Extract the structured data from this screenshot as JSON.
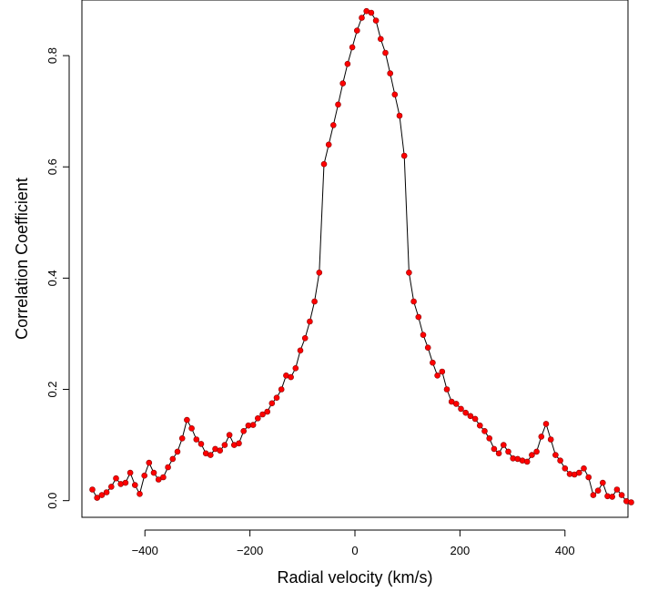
{
  "chart_data": {
    "type": "scatter",
    "title": "",
    "xlabel": "Radial velocity (km/s)",
    "ylabel": "Correlation Coefficient",
    "xlim": [
      -520,
      520
    ],
    "ylim": [
      -0.03,
      0.9
    ],
    "xticks": [
      -400,
      -200,
      0,
      200,
      400
    ],
    "yticks": [
      0.0,
      0.2,
      0.4,
      0.6,
      0.8
    ],
    "xtick_labels": [
      "−400",
      "−200",
      "0",
      "200",
      "400"
    ],
    "ytick_labels": [
      "0.0",
      "0.2",
      "0.4",
      "0.6",
      "0.8"
    ],
    "grid": false,
    "line_color": "#000000",
    "point_color": "#ff0000",
    "series": [
      {
        "points": [
          [
            -500,
            0.02
          ],
          [
            -491,
            0.005
          ],
          [
            -482,
            0.01
          ],
          [
            -473,
            0.015
          ],
          [
            -464,
            0.025
          ],
          [
            -455,
            0.04
          ],
          [
            -446,
            0.03
          ],
          [
            -437,
            0.032
          ],
          [
            -428,
            0.05
          ],
          [
            -419,
            0.028
          ],
          [
            -410,
            0.012
          ],
          [
            -401,
            0.045
          ],
          [
            -392,
            0.068
          ],
          [
            -383,
            0.05
          ],
          [
            -374,
            0.038
          ],
          [
            -365,
            0.042
          ],
          [
            -356,
            0.06
          ],
          [
            -347,
            0.075
          ],
          [
            -338,
            0.088
          ],
          [
            -329,
            0.112
          ],
          [
            -320,
            0.145
          ],
          [
            -311,
            0.13
          ],
          [
            -302,
            0.11
          ],
          [
            -293,
            0.102
          ],
          [
            -284,
            0.085
          ],
          [
            -275,
            0.082
          ],
          [
            -266,
            0.093
          ],
          [
            -257,
            0.09
          ],
          [
            -248,
            0.1
          ],
          [
            -239,
            0.118
          ],
          [
            -230,
            0.1
          ],
          [
            -221,
            0.103
          ],
          [
            -212,
            0.125
          ],
          [
            -203,
            0.135
          ],
          [
            -194,
            0.136
          ],
          [
            -185,
            0.148
          ],
          [
            -176,
            0.155
          ],
          [
            -167,
            0.16
          ],
          [
            -158,
            0.175
          ],
          [
            -149,
            0.185
          ],
          [
            -140,
            0.2
          ],
          [
            -131,
            0.225
          ],
          [
            -122,
            0.222
          ],
          [
            -113,
            0.238
          ],
          [
            -104,
            0.27
          ],
          [
            -95,
            0.292
          ],
          [
            -86,
            0.322
          ],
          [
            -77,
            0.358
          ],
          [
            -68,
            0.41
          ],
          [
            -59,
            0.605
          ],
          [
            -50,
            0.64
          ],
          [
            -41,
            0.675
          ],
          [
            -32,
            0.712
          ],
          [
            -23,
            0.75
          ],
          [
            -14,
            0.785
          ],
          [
            -5,
            0.815
          ],
          [
            4,
            0.845
          ],
          [
            13,
            0.868
          ],
          [
            22,
            0.88
          ],
          [
            31,
            0.877
          ],
          [
            40,
            0.863
          ],
          [
            49,
            0.83
          ],
          [
            58,
            0.805
          ],
          [
            67,
            0.768
          ],
          [
            76,
            0.73
          ],
          [
            85,
            0.692
          ],
          [
            94,
            0.62
          ],
          [
            103,
            0.41
          ],
          [
            112,
            0.358
          ],
          [
            121,
            0.33
          ],
          [
            130,
            0.298
          ],
          [
            139,
            0.275
          ],
          [
            148,
            0.248
          ],
          [
            157,
            0.225
          ],
          [
            166,
            0.232
          ],
          [
            175,
            0.2
          ],
          [
            184,
            0.178
          ],
          [
            193,
            0.174
          ],
          [
            202,
            0.165
          ],
          [
            211,
            0.158
          ],
          [
            220,
            0.152
          ],
          [
            229,
            0.147
          ],
          [
            238,
            0.135
          ],
          [
            247,
            0.125
          ],
          [
            256,
            0.112
          ],
          [
            265,
            0.093
          ],
          [
            274,
            0.085
          ],
          [
            283,
            0.1
          ],
          [
            292,
            0.088
          ],
          [
            301,
            0.076
          ],
          [
            310,
            0.075
          ],
          [
            319,
            0.072
          ],
          [
            328,
            0.07
          ],
          [
            337,
            0.082
          ],
          [
            346,
            0.088
          ],
          [
            355,
            0.115
          ],
          [
            364,
            0.138
          ],
          [
            373,
            0.11
          ],
          [
            382,
            0.082
          ],
          [
            391,
            0.072
          ],
          [
            400,
            0.058
          ],
          [
            409,
            0.048
          ],
          [
            418,
            0.047
          ],
          [
            427,
            0.05
          ],
          [
            436,
            0.058
          ],
          [
            445,
            0.042
          ],
          [
            454,
            0.01
          ],
          [
            463,
            0.018
          ],
          [
            472,
            0.032
          ],
          [
            481,
            0.008
          ],
          [
            490,
            0.007
          ],
          [
            499,
            0.02
          ],
          [
            508,
            0.01
          ],
          [
            517,
            -0.001
          ],
          [
            526,
            -0.003
          ]
        ]
      }
    ]
  }
}
